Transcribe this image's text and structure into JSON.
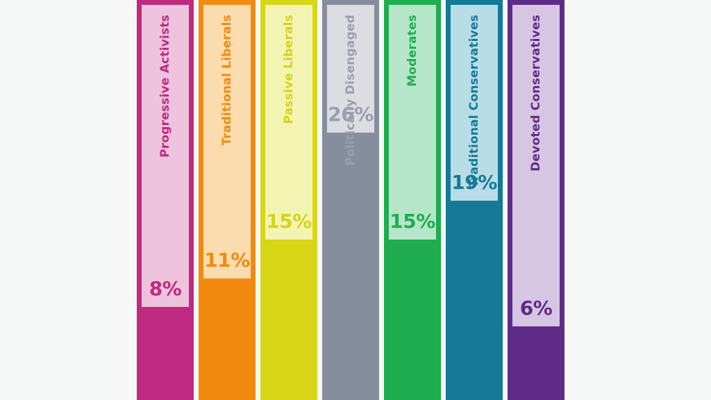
{
  "chart_data": {
    "type": "bar",
    "orientation": "vertical",
    "categories": [
      "Progressive Activists",
      "Traditional Liberals",
      "Passive Liberals",
      "Politically Disengaged",
      "Moderates",
      "Traditional Conservatives",
      "Devoted Conservatives"
    ],
    "values": [
      8,
      11,
      15,
      26,
      15,
      19,
      6
    ],
    "value_labels": [
      "8%",
      "11%",
      "15%",
      "26%",
      "15%",
      "19%",
      "6%"
    ],
    "colors": {
      "dark": [
        "#c02a80",
        "#f28a0f",
        "#d6d616",
        "#868d9c",
        "#1fad4f",
        "#147a98",
        "#5e2b86"
      ],
      "light": [
        "#eec3dd",
        "#fbdcae",
        "#f4f4b2",
        "#dcdde3",
        "#b6e6c9",
        "#b8dde6",
        "#d6c6e3"
      ],
      "text": [
        "#c02a80",
        "#f28a0f",
        "#d3d31c",
        "#9b9fab",
        "#1fad4f",
        "#147a98",
        "#5e2b86"
      ]
    }
  }
}
